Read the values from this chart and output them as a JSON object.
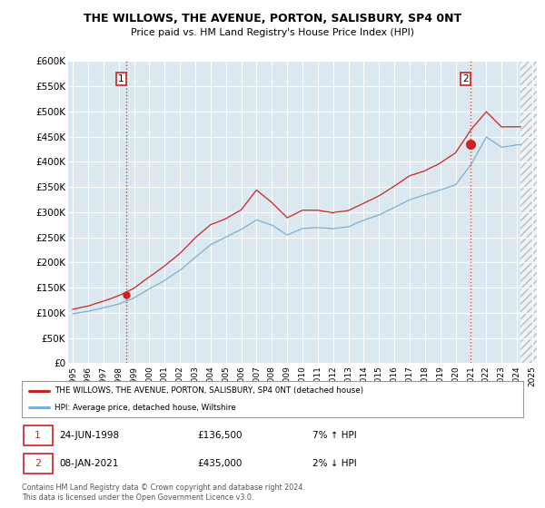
{
  "title": "THE WILLOWS, THE AVENUE, PORTON, SALISBURY, SP4 0NT",
  "subtitle": "Price paid vs. HM Land Registry's House Price Index (HPI)",
  "ylim": [
    0,
    600000
  ],
  "yticks": [
    0,
    50000,
    100000,
    150000,
    200000,
    250000,
    300000,
    350000,
    400000,
    450000,
    500000,
    550000,
    600000
  ],
  "ytick_labels": [
    "£0",
    "£50K",
    "£100K",
    "£150K",
    "£200K",
    "£250K",
    "£300K",
    "£350K",
    "£400K",
    "£450K",
    "£500K",
    "£550K",
    "£600K"
  ],
  "hpi_color": "#7bafd4",
  "price_color": "#cc2222",
  "annotation_color": "#cc2222",
  "chart_bg_color": "#dce8f0",
  "grid_color": "#ffffff",
  "legend_label_house": "THE WILLOWS, THE AVENUE, PORTON, SALISBURY, SP4 0NT (detached house)",
  "legend_label_hpi": "HPI: Average price, detached house, Wiltshire",
  "transaction1_date": "24-JUN-1998",
  "transaction1_price": "£136,500",
  "transaction1_hpi": "7% ↑ HPI",
  "transaction2_date": "08-JAN-2021",
  "transaction2_price": "£435,000",
  "transaction2_hpi": "2% ↓ HPI",
  "footer": "Contains HM Land Registry data © Crown copyright and database right 2024.\nThis data is licensed under the Open Government Licence v3.0.",
  "transaction1_x": 1998.5,
  "transaction1_y": 136500,
  "transaction2_x": 2021.0,
  "transaction2_y": 435000,
  "xlim_left": 1994.7,
  "xlim_right": 2025.3,
  "data_end_x": 2024.25,
  "xticks": [
    1995,
    1996,
    1997,
    1998,
    1999,
    2000,
    2001,
    2002,
    2003,
    2004,
    2005,
    2006,
    2007,
    2008,
    2009,
    2010,
    2011,
    2012,
    2013,
    2014,
    2015,
    2016,
    2017,
    2018,
    2019,
    2020,
    2021,
    2022,
    2023,
    2024,
    2025
  ]
}
